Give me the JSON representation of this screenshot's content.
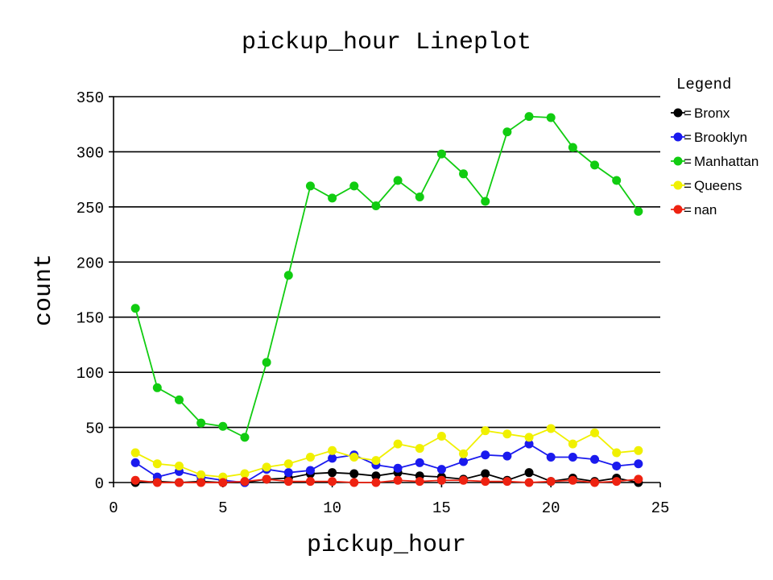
{
  "chart_data": {
    "type": "line",
    "title": "pickup_hour Lineplot",
    "xlabel": "pickup_hour",
    "ylabel": "count",
    "xlim": [
      0,
      25
    ],
    "ylim": [
      0,
      350
    ],
    "xticks": [
      0,
      5,
      10,
      15,
      20,
      25
    ],
    "yticks": [
      0,
      50,
      100,
      150,
      200,
      250,
      300,
      350
    ],
    "grid": "horizontal",
    "legend": {
      "title": "Legend",
      "position": "top-right"
    },
    "series": [
      {
        "name": "Bronx",
        "color": "#000000",
        "x": [
          1,
          2,
          3,
          4,
          5,
          6,
          7,
          8,
          9,
          10,
          11,
          12,
          13,
          14,
          15,
          16,
          17,
          18,
          19,
          20,
          21,
          22,
          23,
          24
        ],
        "y": [
          0,
          1,
          0,
          1,
          0,
          0,
          3,
          4,
          8,
          9,
          8,
          6,
          9,
          6,
          5,
          3,
          8,
          2,
          9,
          1,
          4,
          1,
          4,
          0
        ]
      },
      {
        "name": "Brooklyn",
        "color": "#1a1aee",
        "x": [
          1,
          2,
          3,
          4,
          5,
          6,
          7,
          8,
          9,
          10,
          11,
          12,
          13,
          14,
          15,
          16,
          17,
          18,
          19,
          20,
          21,
          22,
          23,
          24
        ],
        "y": [
          18,
          5,
          10,
          5,
          2,
          0,
          12,
          9,
          11,
          22,
          25,
          16,
          13,
          18,
          12,
          19,
          25,
          24,
          35,
          23,
          23,
          21,
          15,
          17
        ]
      },
      {
        "name": "Manhattan",
        "color": "#11cc11",
        "x": [
          1,
          2,
          3,
          4,
          5,
          6,
          7,
          8,
          9,
          10,
          11,
          12,
          13,
          14,
          15,
          16,
          17,
          18,
          19,
          20,
          21,
          22,
          23,
          24
        ],
        "y": [
          158,
          86,
          75,
          54,
          51,
          41,
          109,
          188,
          269,
          258,
          269,
          251,
          274,
          259,
          298,
          280,
          255,
          318,
          332,
          331,
          304,
          288,
          274,
          246
        ]
      },
      {
        "name": "Queens",
        "color": "#f0f000",
        "x": [
          1,
          2,
          3,
          4,
          5,
          6,
          7,
          8,
          9,
          10,
          11,
          12,
          13,
          14,
          15,
          16,
          17,
          18,
          19,
          20,
          21,
          22,
          23,
          24
        ],
        "y": [
          27,
          17,
          15,
          7,
          5,
          8,
          14,
          17,
          23,
          29,
          23,
          20,
          35,
          31,
          42,
          26,
          47,
          44,
          41,
          49,
          35,
          45,
          27,
          29
        ]
      },
      {
        "name": "nan",
        "color": "#ee2211",
        "x": [
          1,
          2,
          3,
          4,
          5,
          6,
          7,
          8,
          9,
          10,
          11,
          12,
          13,
          14,
          15,
          16,
          17,
          18,
          19,
          20,
          21,
          22,
          23,
          24
        ],
        "y": [
          2,
          0,
          0,
          0,
          0,
          1,
          3,
          1,
          1,
          1,
          0,
          0,
          2,
          1,
          2,
          2,
          1,
          1,
          0,
          1,
          2,
          0,
          1,
          3
        ]
      }
    ]
  }
}
